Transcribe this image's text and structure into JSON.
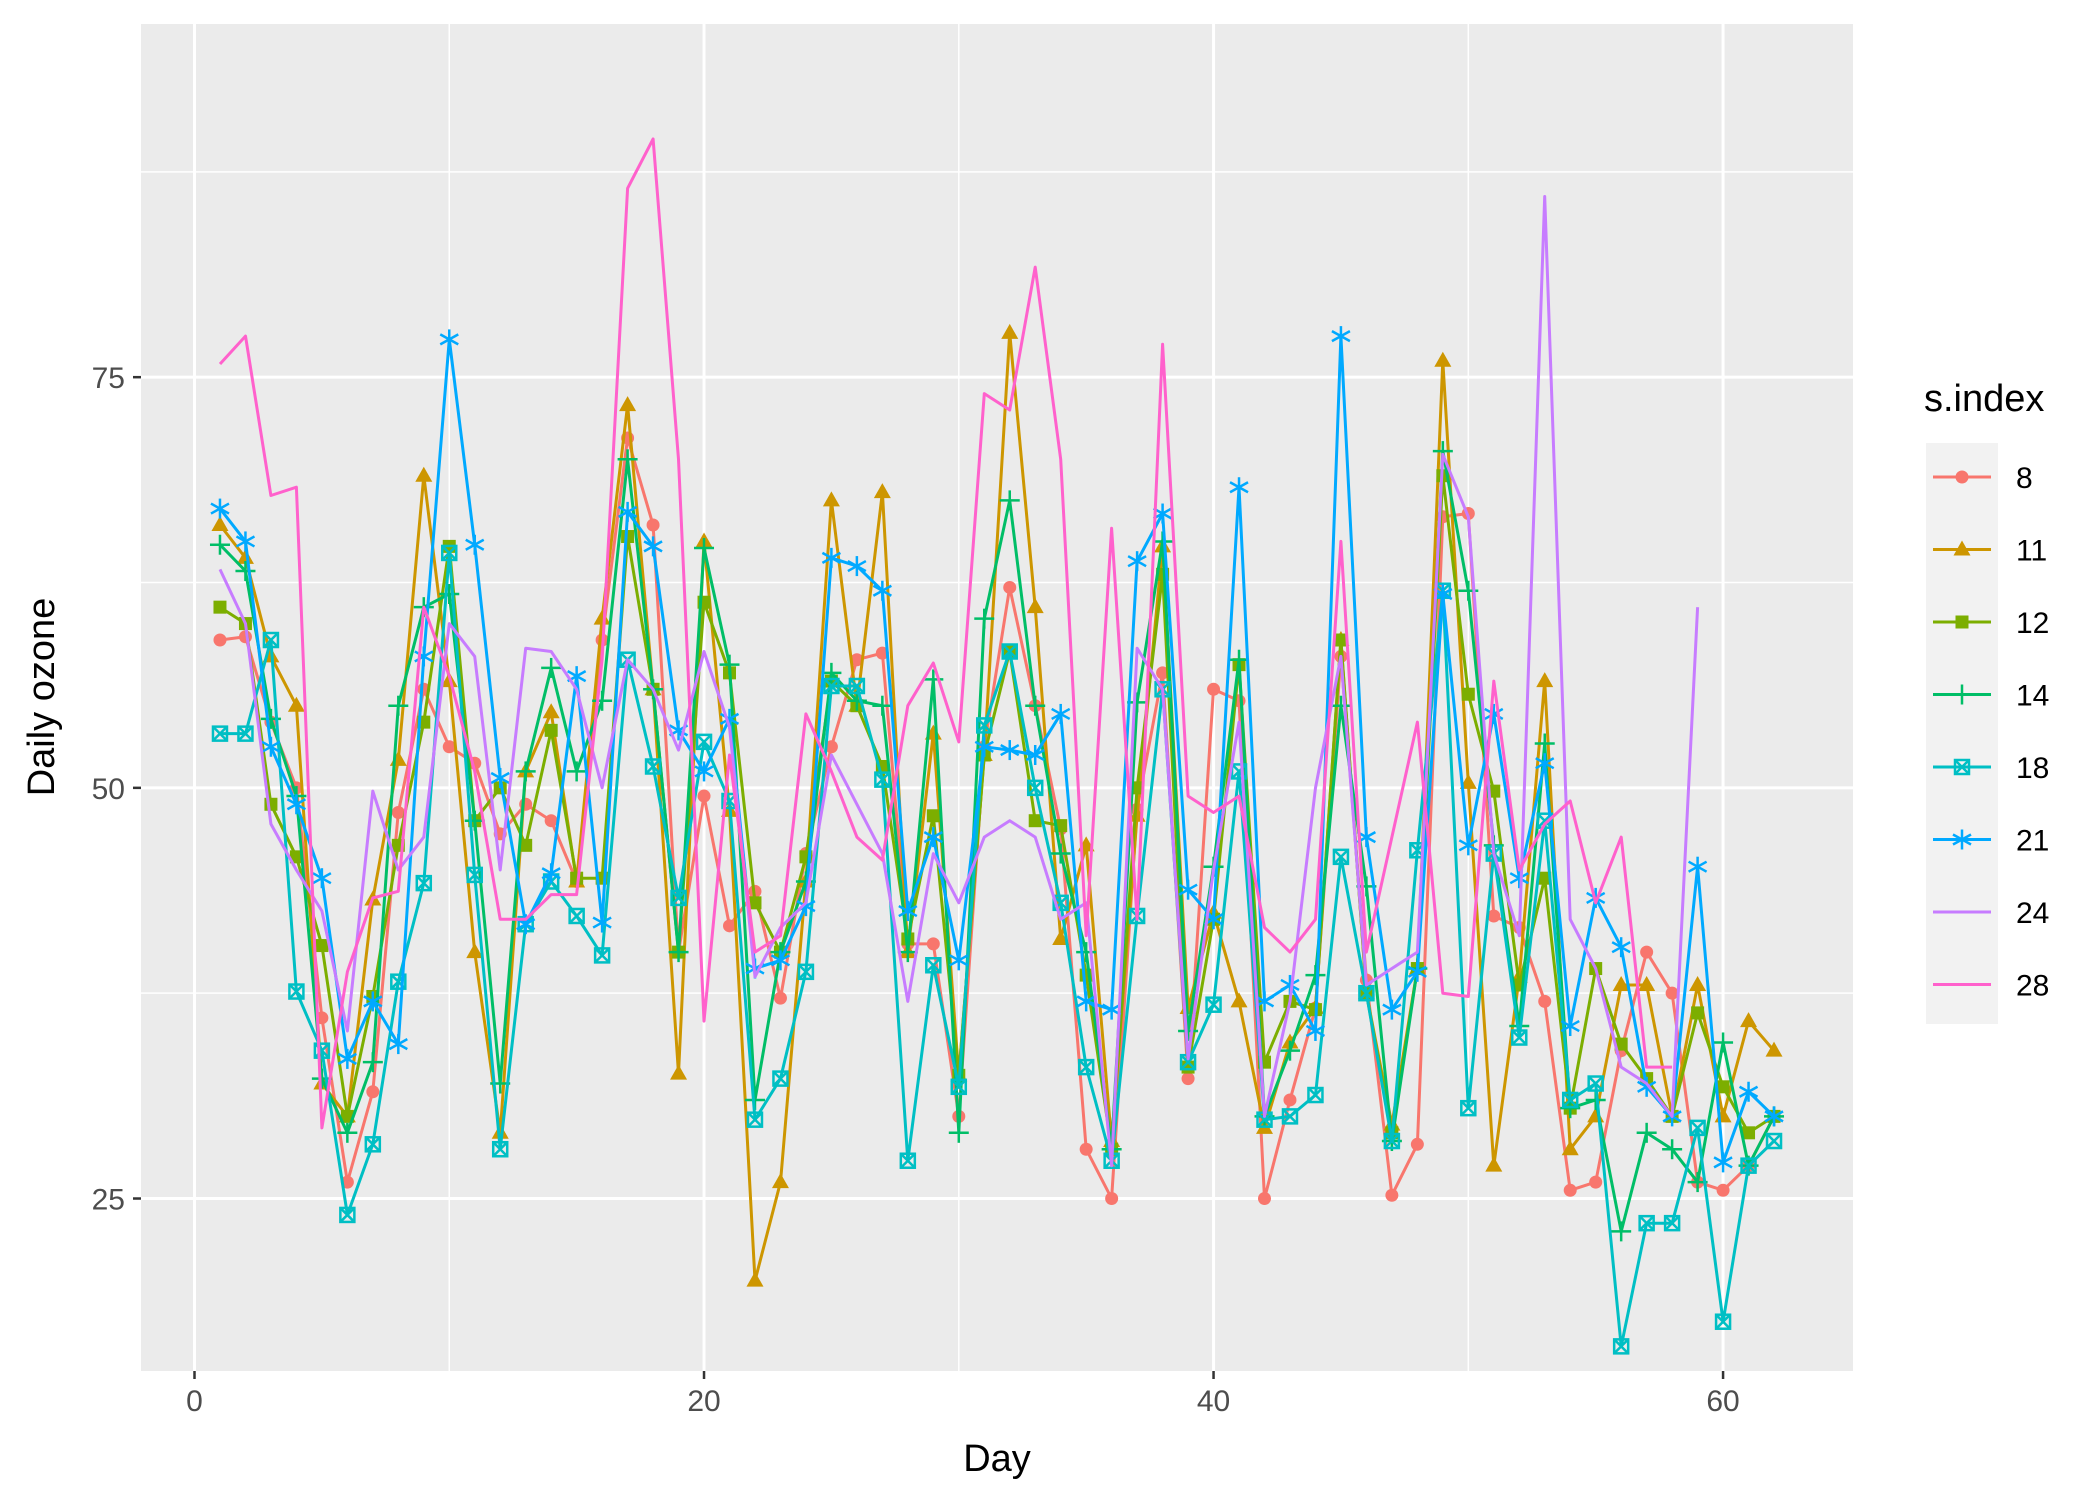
{
  "chart_data": {
    "type": "line",
    "xlabel": "Day",
    "ylabel": "Daily ozone",
    "xlim": [
      -2.1,
      65.1
    ],
    "ylim": [
      14.5,
      96.5
    ],
    "xticks": [
      0,
      20,
      40,
      60
    ],
    "yticks": [
      25,
      50,
      75
    ],
    "grid": true,
    "legend_title": "s.index",
    "legend_position": "right",
    "background_color": "#ebebeb",
    "grid_color": "#ffffff",
    "series": [
      {
        "name": "8",
        "color": "#F8766D",
        "marker": "circle",
        "x": [
          1,
          2,
          3,
          4,
          5,
          6,
          7,
          8,
          9,
          10,
          11,
          12,
          13,
          14,
          15,
          16,
          17,
          18,
          19,
          20,
          21,
          22,
          23,
          24,
          25,
          26,
          27,
          28,
          29,
          30,
          31,
          32,
          33,
          34,
          35,
          36,
          37,
          38,
          39,
          40,
          41,
          42,
          43,
          44,
          45,
          46,
          47,
          48,
          49,
          50,
          51,
          52,
          53,
          54,
          55,
          56,
          57,
          58,
          59,
          60,
          61,
          62
        ],
        "values": [
          59,
          59.2,
          54,
          50,
          36,
          26,
          31.5,
          48.5,
          56,
          52.5,
          51.5,
          47.2,
          49,
          48,
          44.3,
          59,
          71.3,
          66,
          40,
          49.5,
          41.6,
          43.7,
          37.2,
          46,
          52.5,
          57.8,
          58.2,
          40.5,
          40.5,
          30,
          52.5,
          62.2,
          55,
          47.5,
          28,
          25,
          48.7,
          57,
          32.3,
          56,
          55.3,
          25,
          31,
          36.6,
          58,
          38.3,
          25.2,
          28.3,
          66.5,
          66.7,
          42.2,
          41.5,
          37,
          25.5,
          26,
          34,
          40,
          37.5,
          26,
          25.5,
          27,
          30
        ]
      },
      {
        "name": "11",
        "color": "#CD9600",
        "marker": "triangle",
        "x": [
          1,
          2,
          3,
          4,
          5,
          6,
          7,
          8,
          9,
          10,
          11,
          12,
          13,
          14,
          15,
          16,
          17,
          18,
          19,
          20,
          21,
          22,
          23,
          24,
          25,
          26,
          27,
          28,
          29,
          30,
          31,
          32,
          33,
          34,
          35,
          36,
          37,
          38,
          39,
          40,
          41,
          42,
          43,
          44,
          45,
          46,
          47,
          48,
          49,
          50,
          51,
          52,
          53,
          54,
          55,
          56,
          57,
          58,
          59,
          60,
          61,
          62
        ],
        "values": [
          66,
          64,
          58,
          55,
          32,
          30,
          43.2,
          51.7,
          69,
          56.5,
          40,
          29,
          51,
          54.6,
          44.3,
          60.3,
          73.3,
          56,
          32.6,
          65,
          48.6,
          20,
          26,
          44.3,
          67.5,
          55,
          68,
          40,
          53.3,
          32.5,
          52,
          77.7,
          61,
          40.8,
          46.5,
          28.5,
          48.3,
          64.7,
          36.6,
          42.4,
          37,
          29.3,
          34.5,
          36.6,
          59,
          37.5,
          29.5,
          39,
          76,
          50.3,
          27,
          38.5,
          56.5,
          28,
          30,
          38,
          38,
          30,
          38,
          30,
          35.8,
          34
        ]
      },
      {
        "name": "12",
        "color": "#7CAE00",
        "marker": "square",
        "x": [
          1,
          2,
          3,
          4,
          5,
          6,
          7,
          8,
          9,
          10,
          11,
          12,
          13,
          14,
          15,
          16,
          17,
          18,
          19,
          20,
          21,
          22,
          23,
          24,
          25,
          26,
          27,
          28,
          29,
          30,
          31,
          32,
          33,
          34,
          35,
          36,
          37,
          38,
          39,
          40,
          41,
          42,
          43,
          44,
          45,
          46,
          47,
          48,
          49,
          50,
          51,
          52,
          53,
          54,
          55,
          56,
          57,
          58,
          59,
          60,
          61,
          62
        ],
        "values": [
          61,
          60,
          49,
          45.8,
          40.4,
          30,
          37.3,
          46.5,
          54,
          64.7,
          48,
          50,
          46.5,
          53.5,
          44.5,
          44.5,
          65.3,
          56,
          40,
          61.3,
          57,
          43,
          40,
          45.8,
          56.5,
          55,
          51.3,
          40.8,
          48.3,
          32.5,
          52,
          58.3,
          48,
          47.7,
          38.6,
          28,
          50,
          63,
          33,
          42,
          57.5,
          33.3,
          37,
          36.5,
          59,
          37.5,
          29,
          39,
          69,
          55.7,
          49.8,
          38,
          44.5,
          30.5,
          39,
          34.4,
          32.3,
          30,
          36.3,
          31.8,
          29,
          30
        ]
      },
      {
        "name": "14",
        "color": "#00BE67",
        "marker": "plus",
        "x": [
          1,
          2,
          3,
          4,
          5,
          6,
          7,
          8,
          9,
          10,
          11,
          12,
          13,
          14,
          15,
          16,
          17,
          18,
          19,
          20,
          21,
          22,
          23,
          24,
          25,
          26,
          27,
          28,
          29,
          30,
          31,
          32,
          33,
          34,
          35,
          36,
          37,
          38,
          39,
          40,
          41,
          42,
          43,
          44,
          45,
          46,
          47,
          48,
          49,
          50,
          51,
          52,
          53,
          54,
          55,
          56,
          57,
          58,
          59,
          60,
          61,
          62
        ],
        "values": [
          64.8,
          63.2,
          54.2,
          49.5,
          32.3,
          29,
          33.3,
          55,
          61,
          61.8,
          48,
          32,
          51,
          57.3,
          51,
          55.3,
          70,
          56,
          40,
          64.6,
          57.5,
          31,
          40,
          44.3,
          57,
          55.3,
          55,
          40,
          56.6,
          29,
          60.3,
          67.5,
          55,
          46,
          40,
          28,
          55.2,
          65,
          35.2,
          45.2,
          57.8,
          30,
          34,
          38.6,
          55,
          44,
          28.5,
          39,
          70.5,
          62,
          46.5,
          35.5,
          52.7,
          30.5,
          31,
          23,
          29,
          28,
          26,
          34.5,
          27,
          30
        ]
      },
      {
        "name": "18",
        "color": "#00BFC4",
        "marker": "square-x",
        "x": [
          1,
          2,
          3,
          4,
          5,
          6,
          7,
          8,
          9,
          10,
          11,
          12,
          13,
          14,
          15,
          16,
          17,
          18,
          19,
          20,
          21,
          22,
          23,
          24,
          25,
          26,
          27,
          28,
          29,
          30,
          31,
          32,
          33,
          34,
          35,
          36,
          37,
          38,
          39,
          40,
          41,
          42,
          43,
          44,
          45,
          46,
          47,
          48,
          49,
          50,
          51,
          52,
          53,
          54,
          55,
          56,
          57,
          58,
          59,
          60,
          61,
          62
        ],
        "values": [
          53.3,
          53.3,
          59,
          37.6,
          34,
          24,
          28.3,
          38.2,
          44.2,
          64.3,
          44.7,
          28,
          41.7,
          44.3,
          42.2,
          39.8,
          57.8,
          51.3,
          43.3,
          52.8,
          49.2,
          29.8,
          32.3,
          38.8,
          56.2,
          56.2,
          50.5,
          27.3,
          39.2,
          31.8,
          53.8,
          58.3,
          50,
          43,
          33,
          27.3,
          42.2,
          56,
          33.3,
          36.8,
          51,
          29.8,
          30,
          31.3,
          45.8,
          37.5,
          28.5,
          46.2,
          62,
          30.5,
          46,
          34.8,
          48,
          31,
          32,
          16,
          23.5,
          23.5,
          29.3,
          17.5,
          27,
          28.5
        ]
      },
      {
        "name": "21",
        "color": "#00A9FF",
        "marker": "asterisk",
        "x": [
          1,
          2,
          3,
          4,
          5,
          6,
          7,
          8,
          9,
          10,
          11,
          12,
          13,
          14,
          15,
          16,
          17,
          18,
          19,
          20,
          21,
          22,
          23,
          24,
          25,
          26,
          27,
          28,
          29,
          30,
          31,
          32,
          33,
          34,
          35,
          36,
          37,
          38,
          39,
          40,
          41,
          42,
          43,
          44,
          45,
          46,
          47,
          48,
          49,
          50,
          51,
          52,
          53,
          54,
          55,
          56,
          57,
          58,
          59,
          60,
          61,
          62
        ],
        "values": [
          67,
          65,
          52.5,
          49,
          44.5,
          33.5,
          37,
          34.4,
          58,
          77.3,
          64.8,
          50.6,
          41.7,
          44.8,
          56.8,
          41.8,
          66.8,
          64.7,
          53.5,
          51,
          54.2,
          39,
          39.5,
          42.8,
          64,
          63.5,
          62,
          42.5,
          47,
          39.5,
          52.5,
          52.3,
          52,
          54.5,
          37,
          36.5,
          63.8,
          66.7,
          43.8,
          42,
          68.3,
          37,
          38,
          35.2,
          77.5,
          47,
          36.5,
          38.8,
          61.8,
          46.5,
          54.5,
          44.5,
          51.5,
          35.5,
          43.3,
          40.3,
          31.8,
          30,
          45.2,
          27.2,
          31.5,
          30
        ]
      },
      {
        "name": "24",
        "color": "#C77CFF",
        "marker": "none",
        "x": [
          1,
          2,
          3,
          4,
          5,
          6,
          7,
          8,
          9,
          10,
          11,
          12,
          13,
          14,
          15,
          16,
          17,
          18,
          19,
          20,
          21,
          22,
          23,
          24,
          25,
          26,
          27,
          28,
          29,
          30,
          31,
          32,
          33,
          34,
          35,
          36,
          37,
          38,
          39,
          40,
          41,
          42,
          43,
          44,
          45,
          46,
          47,
          48,
          49,
          50,
          51,
          52,
          53,
          54,
          55,
          56,
          57,
          58,
          59
        ],
        "values": [
          63.3,
          60,
          47.8,
          45,
          42.5,
          35.2,
          49.8,
          45,
          47,
          60,
          58,
          45,
          58.5,
          58.3,
          56,
          50,
          57.8,
          56,
          52.3,
          58.3,
          53.7,
          38.5,
          41.5,
          43,
          52,
          49,
          46,
          37,
          46,
          43,
          47,
          48,
          47,
          42,
          43,
          27,
          58.5,
          56,
          33.5,
          45,
          54,
          30,
          37,
          50,
          58,
          38,
          39,
          40,
          70.3,
          66.5,
          46,
          41,
          86,
          42,
          39,
          33,
          32,
          30,
          61
        ]
      },
      {
        "name": "28",
        "color": "#FF61CC",
        "marker": "none",
        "x": [
          1,
          2,
          3,
          4,
          5,
          6,
          7,
          8,
          9,
          10,
          11,
          12,
          13,
          14,
          15,
          16,
          17,
          18,
          19,
          20,
          21,
          22,
          23,
          24,
          25,
          26,
          27,
          28,
          29,
          30,
          31,
          32,
          33,
          34,
          35,
          36,
          37,
          38,
          39,
          40,
          41,
          42,
          43,
          44,
          45,
          46,
          47,
          48,
          49,
          50,
          51,
          52,
          53,
          54,
          55,
          56,
          57,
          58
        ],
        "values": [
          75.8,
          77.5,
          67.8,
          68.3,
          29.3,
          38.8,
          43.3,
          43.7,
          61,
          56.8,
          51,
          42,
          42,
          43.5,
          43.5,
          57.8,
          86.5,
          89.5,
          70,
          35.8,
          52,
          40,
          41,
          54.5,
          51,
          47,
          45.6,
          55,
          57.6,
          52.8,
          74,
          73,
          81.7,
          70,
          41,
          65.8,
          42,
          77,
          49.5,
          48.5,
          49.5,
          41.5,
          40,
          42,
          65,
          40,
          47,
          54,
          37.5,
          37.3,
          56.5,
          45,
          47.8,
          49.2,
          43,
          47,
          33,
          33
        ]
      }
    ]
  }
}
